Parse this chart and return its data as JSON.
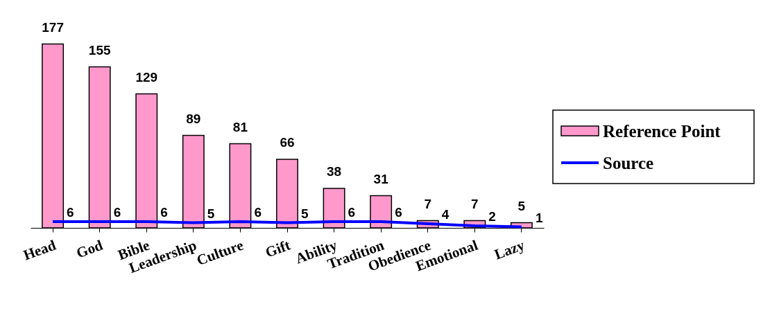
{
  "chart_data": {
    "type": "bar",
    "categories": [
      "Head",
      "God",
      "Bible",
      "Leadership",
      "Culture",
      "Gift",
      "Ability",
      "Tradition",
      "Obedience",
      "Emotional",
      "Lazy"
    ],
    "series": [
      {
        "name": "Reference Point",
        "color": "#ff99cc",
        "values": [
          177,
          155,
          129,
          89,
          81,
          66,
          38,
          31,
          7,
          7,
          5
        ]
      },
      {
        "name": "Source",
        "type": "line",
        "color": "#0000ff",
        "values": [
          6,
          6,
          6,
          5,
          6,
          5,
          6,
          6,
          4,
          2,
          1
        ]
      }
    ],
    "data_labels": true,
    "legend": "right",
    "grid": false
  }
}
